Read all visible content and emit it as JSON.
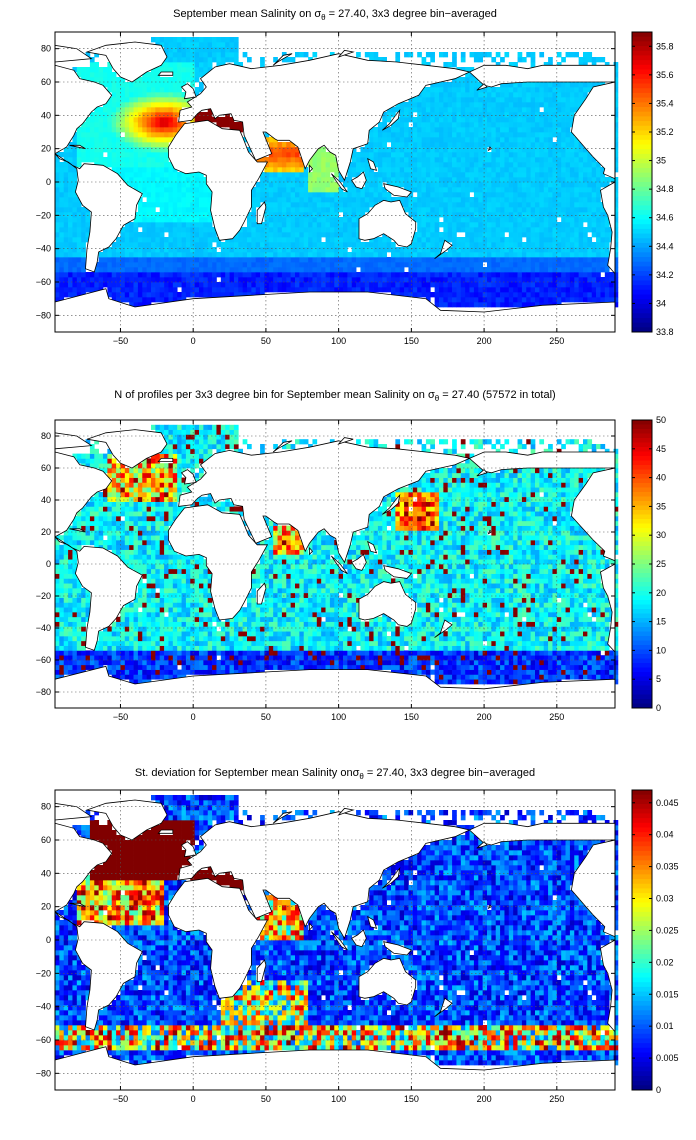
{
  "chart_data": [
    {
      "type": "heatmap",
      "title_pre": "September mean Salinity on ",
      "title_sym": "σ",
      "title_sub": "θ",
      "title_post": " = 27.40, 3x3 degree bin−averaged",
      "x_ticks": [
        -50,
        0,
        50,
        100,
        150,
        200,
        250
      ],
      "y_ticks": [
        80,
        60,
        40,
        20,
        0,
        -20,
        -40,
        -60,
        -80
      ],
      "xlim": [
        -95,
        290
      ],
      "ylim": [
        -90,
        90
      ],
      "grid": true,
      "colorbar": {
        "min": 33.8,
        "max": 35.9,
        "ticks": [
          "35.8",
          "35.6",
          "35.4",
          "35.2",
          "35",
          "34.8",
          "34.6",
          "34.4",
          "34.2",
          "34",
          "33.8"
        ],
        "tick_values": [
          35.8,
          35.6,
          35.4,
          35.2,
          35.0,
          34.8,
          34.6,
          34.4,
          34.2,
          34.0,
          33.8
        ]
      },
      "field": "salinity"
    },
    {
      "type": "heatmap",
      "title_pre": "N of profiles per 3x3 degree bin for September mean Salinity on ",
      "title_sym": "σ",
      "title_sub": "θ",
      "title_post": " = 27.40 (57572 in total)",
      "x_ticks": [
        -50,
        0,
        50,
        100,
        150,
        200,
        250
      ],
      "y_ticks": [
        80,
        60,
        40,
        20,
        0,
        -20,
        -40,
        -60,
        -80
      ],
      "xlim": [
        -95,
        290
      ],
      "ylim": [
        -90,
        90
      ],
      "grid": true,
      "colorbar": {
        "min": 0,
        "max": 50,
        "ticks": [
          "50",
          "45",
          "40",
          "35",
          "30",
          "25",
          "20",
          "15",
          "10",
          "5",
          "0"
        ],
        "tick_values": [
          50,
          45,
          40,
          35,
          30,
          25,
          20,
          15,
          10,
          5,
          0
        ]
      },
      "field": "count"
    },
    {
      "type": "heatmap",
      "title_pre": "St. deviation for September mean Salinity on",
      "title_sym": "σ",
      "title_sub": "θ",
      "title_post": " = 27.40, 3x3 degree bin−averaged",
      "x_ticks": [
        -50,
        0,
        50,
        100,
        150,
        200,
        250
      ],
      "y_ticks": [
        80,
        60,
        40,
        20,
        0,
        -20,
        -40,
        -60,
        -80
      ],
      "xlim": [
        -95,
        290
      ],
      "ylim": [
        -90,
        90
      ],
      "grid": true,
      "colorbar": {
        "min": 0,
        "max": 0.047,
        "ticks": [
          "0.045",
          "0.04",
          "0.035",
          "0.03",
          "0.025",
          "0.02",
          "0.015",
          "0.01",
          "0.005",
          "0"
        ],
        "tick_values": [
          0.045,
          0.04,
          0.035,
          0.03,
          0.025,
          0.02,
          0.015,
          0.01,
          0.005,
          0
        ]
      },
      "field": "stdev"
    }
  ]
}
